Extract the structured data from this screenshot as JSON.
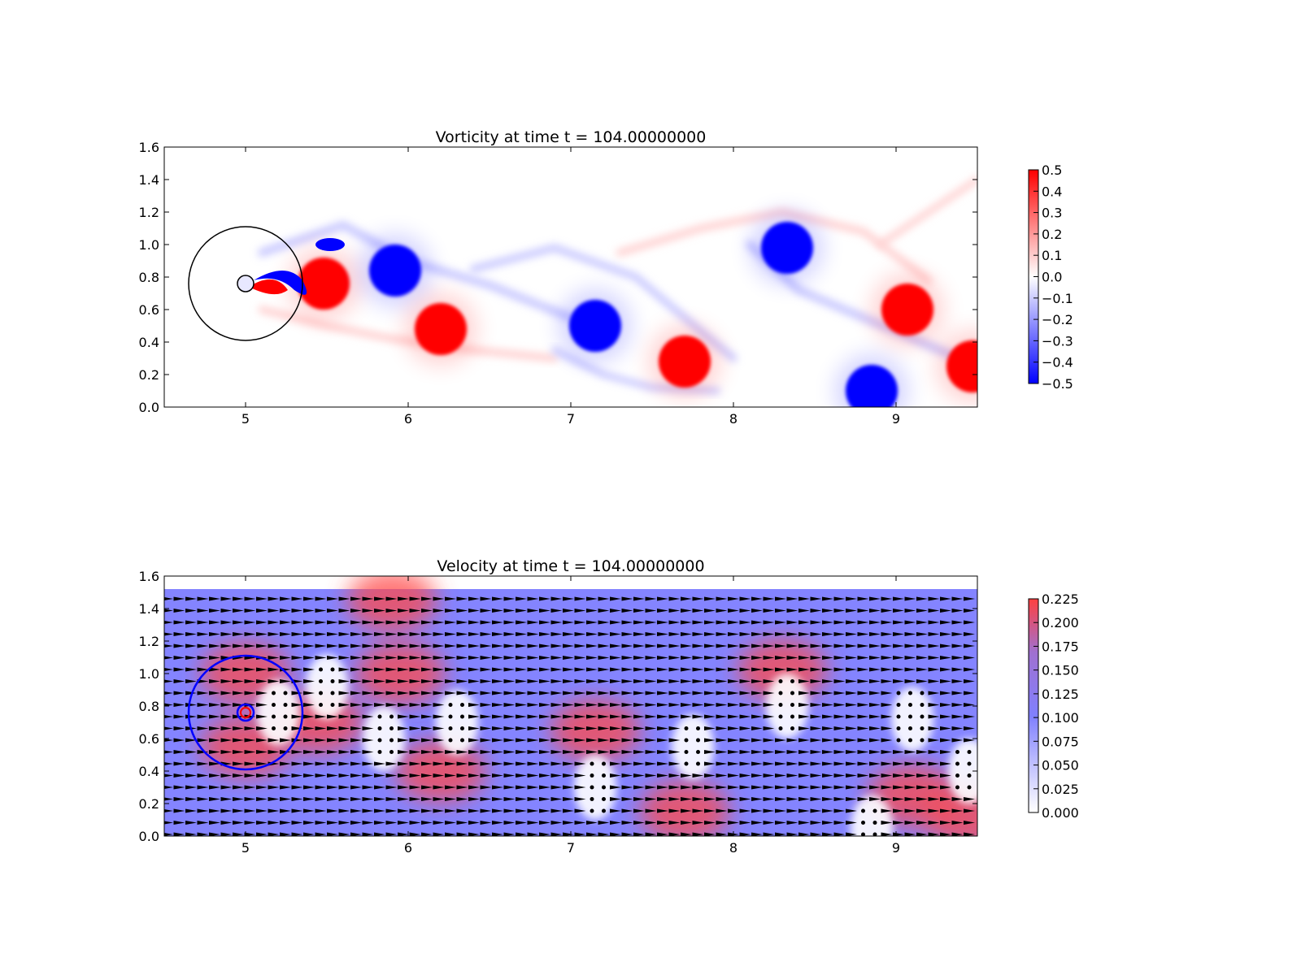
{
  "chart_data": [
    {
      "type": "heatmap",
      "title": "Vorticity at time t =   104.00000000",
      "xlabel": "",
      "ylabel": "",
      "xlim": [
        4.5,
        9.5
      ],
      "ylim": [
        0.0,
        1.6
      ],
      "xticks": [
        "5",
        "6",
        "7",
        "8",
        "9"
      ],
      "yticks": [
        "0.0",
        "0.2",
        "0.4",
        "0.6",
        "0.8",
        "1.0",
        "1.2",
        "1.4",
        "1.6"
      ],
      "colorbar": {
        "range": [
          -0.5,
          0.5
        ],
        "ticks": [
          "0.5",
          "0.4",
          "0.3",
          "0.2",
          "0.1",
          "0.0",
          "−0.1",
          "−0.2",
          "−0.3",
          "−0.4",
          "−0.5"
        ],
        "colormap": [
          "#0000ff",
          "#ffffff",
          "#ff0000"
        ]
      },
      "cylinder": {
        "center": [
          5.0,
          0.76
        ],
        "radius": 0.05
      },
      "zoom_circle": {
        "center": [
          5.0,
          0.76
        ],
        "radius": 0.35
      },
      "vortices": [
        {
          "x": 5.48,
          "y": 0.76,
          "value": 0.5
        },
        {
          "x": 5.92,
          "y": 0.84,
          "value": -0.5
        },
        {
          "x": 6.2,
          "y": 0.48,
          "value": 0.5
        },
        {
          "x": 7.15,
          "y": 0.5,
          "value": -0.5
        },
        {
          "x": 7.7,
          "y": 0.28,
          "value": 0.5
        },
        {
          "x": 8.33,
          "y": 0.98,
          "value": -0.5
        },
        {
          "x": 9.07,
          "y": 0.6,
          "value": 0.5
        },
        {
          "x": 8.85,
          "y": 0.1,
          "value": -0.5
        },
        {
          "x": 9.47,
          "y": 0.25,
          "value": 0.5
        }
      ],
      "colors": {
        "positive": "#ff0000",
        "negative": "#0000ff",
        "circle": "#000000"
      }
    },
    {
      "type": "heatmap",
      "title": "Velocity at time t =   104.00000000",
      "xlabel": "",
      "ylabel": "",
      "xlim": [
        4.5,
        9.5
      ],
      "ylim": [
        0.0,
        1.6
      ],
      "xticks": [
        "5",
        "6",
        "7",
        "8",
        "9"
      ],
      "yticks": [
        "0.0",
        "0.2",
        "0.4",
        "0.6",
        "0.8",
        "1.0",
        "1.2",
        "1.4",
        "1.6"
      ],
      "colorbar": {
        "range": [
          0.0,
          0.225
        ],
        "ticks": [
          "0.225",
          "0.200",
          "0.175",
          "0.150",
          "0.125",
          "0.100",
          "0.075",
          "0.050",
          "0.025",
          "0.000"
        ],
        "colormap": [
          "#ffffff",
          "#8080ff",
          "#ff4040"
        ]
      },
      "background_speed": 0.1,
      "field_top": 1.52,
      "quiver": true,
      "cylinder": {
        "center": [
          5.0,
          0.76
        ],
        "radius": 0.05
      },
      "zoom_circle": {
        "center": [
          5.0,
          0.76
        ],
        "radius": 0.35
      },
      "colors": {
        "circle": "#0000ff",
        "arrow": "#000000",
        "cylinder": "#ff0000"
      }
    }
  ]
}
